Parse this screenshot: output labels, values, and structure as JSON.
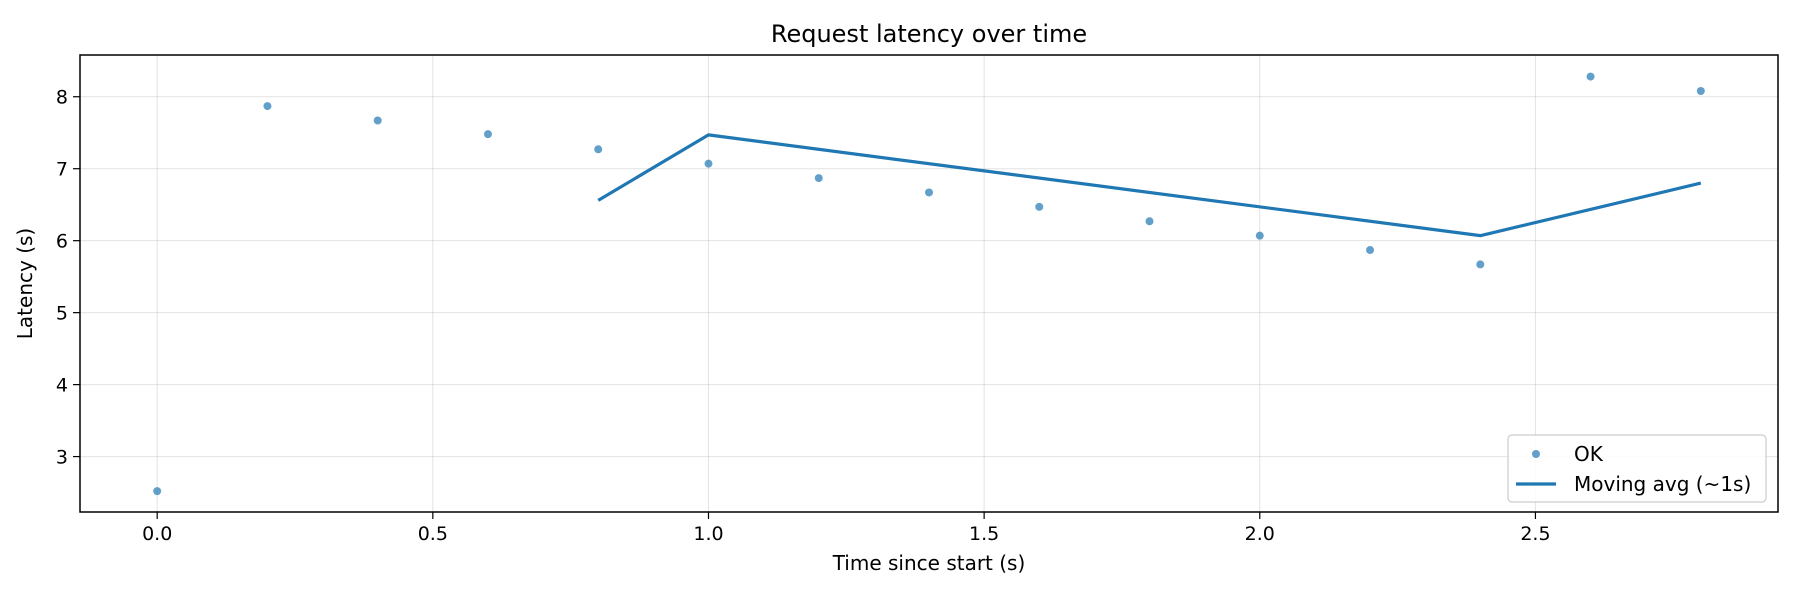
{
  "chart_data": {
    "type": "scatter",
    "title": "Request latency over time",
    "xlabel": "Time since start (s)",
    "ylabel": "Latency (s)",
    "xlim": [
      -0.14,
      2.94
    ],
    "ylim": [
      2.23,
      8.58
    ],
    "xticks": [
      0.0,
      0.5,
      1.0,
      1.5,
      2.0,
      2.5
    ],
    "xtick_labels": [
      "0.0",
      "0.5",
      "1.0",
      "1.5",
      "2.0",
      "2.5"
    ],
    "yticks": [
      3,
      4,
      5,
      6,
      7,
      8
    ],
    "ytick_labels": [
      "3",
      "4",
      "5",
      "6",
      "7",
      "8"
    ],
    "grid": true,
    "legend_position": "lower-right",
    "series": [
      {
        "name": "OK",
        "kind": "scatter",
        "color": "#1f77b4",
        "x": [
          0.0,
          0.2,
          0.4,
          0.6,
          0.8,
          1.0,
          1.2,
          1.4,
          1.6,
          1.8,
          2.0,
          2.2,
          2.4,
          2.6,
          2.8
        ],
        "y": [
          2.52,
          7.87,
          7.67,
          7.48,
          7.27,
          7.07,
          6.87,
          6.67,
          6.47,
          6.27,
          6.07,
          5.87,
          5.67,
          8.28,
          8.08
        ]
      },
      {
        "name": "Moving avg (~1s)",
        "kind": "line",
        "color": "#1f77b4",
        "x": [
          0.8,
          1.0,
          2.4,
          2.8
        ],
        "y": [
          6.56,
          7.47,
          6.07,
          6.8
        ]
      }
    ]
  }
}
